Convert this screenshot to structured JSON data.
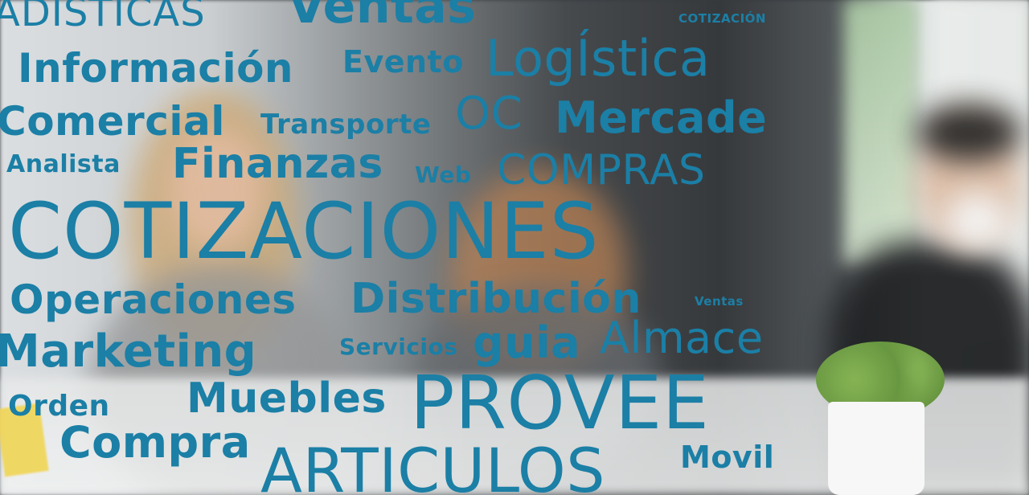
{
  "background": {
    "description_colors": {
      "word_color": "#1b7fa6",
      "word_color_light": "#2a93bd"
    }
  },
  "word_cloud": {
    "words": [
      "ADISTICAS",
      "Ventas",
      "COTIZACIÓN",
      "Información",
      "Evento",
      "LogÍstica",
      "Comercial",
      "Transporte",
      "OC",
      "Mercade",
      "Analista",
      "Finanzas",
      "Web",
      "COMPRAS",
      "COTIZACIONES",
      "Operaciones",
      "Distribución",
      "Ventas",
      "Marketing",
      "Servicios",
      "guia",
      "Almace",
      "Orden",
      "Muebles",
      "PROVEE",
      "Compra",
      "ARTICULOS",
      "Movil"
    ]
  }
}
